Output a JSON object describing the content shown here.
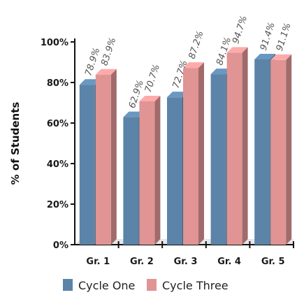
{
  "chart_data": {
    "type": "bar",
    "ylabel": "% of Students",
    "xlabel": "",
    "ylim": [
      0,
      100
    ],
    "yticks": [
      "0%",
      "20%",
      "40%",
      "60%",
      "80%",
      "100%"
    ],
    "categories": [
      "Gr. 1",
      "Gr. 2",
      "Gr. 3",
      "Gr. 4",
      "Gr. 5"
    ],
    "series": [
      {
        "name": "Cycle One",
        "color": "#5b84a8",
        "values": [
          78.9,
          62.9,
          72.7,
          84.1,
          91.4
        ],
        "labels": [
          "78.9%",
          "62.9%",
          "72.7%",
          "84.1%",
          "91.4%"
        ]
      },
      {
        "name": "Cycle Three",
        "color": "#e09494",
        "values": [
          83.9,
          70.7,
          87.2,
          94.7,
          91.1
        ],
        "labels": [
          "83.9%",
          "70.7%",
          "87.2%",
          "94.7%",
          "91.1%"
        ]
      }
    ],
    "grid": false,
    "legend_position": "bottom"
  }
}
